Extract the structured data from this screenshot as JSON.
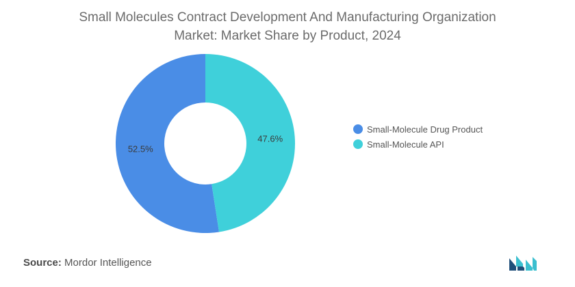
{
  "chart_data": {
    "type": "pie",
    "variant": "donut",
    "title": "Small Molecules Contract Development And Manufacturing Organization Market: Market Share by Product, 2024",
    "title_lines": [
      "Small Molecules Contract Development And Manufacturing Organization",
      "Market: Market Share by Product, 2024"
    ],
    "categories": [
      "Small-Molecule Drug Product",
      "Small-Molecule API"
    ],
    "values": [
      52.5,
      47.6
    ],
    "data_labels": [
      "52.5%",
      "47.6%"
    ],
    "colors": [
      "#4a8de6",
      "#3fd0da"
    ],
    "legend_position": "right"
  },
  "source": {
    "label": "Source:",
    "text": "Mordor Intelligence"
  },
  "logo": {
    "icon": "mordor-intelligence-logo",
    "colors": [
      "#1f4e79",
      "#3bbfcf"
    ]
  }
}
